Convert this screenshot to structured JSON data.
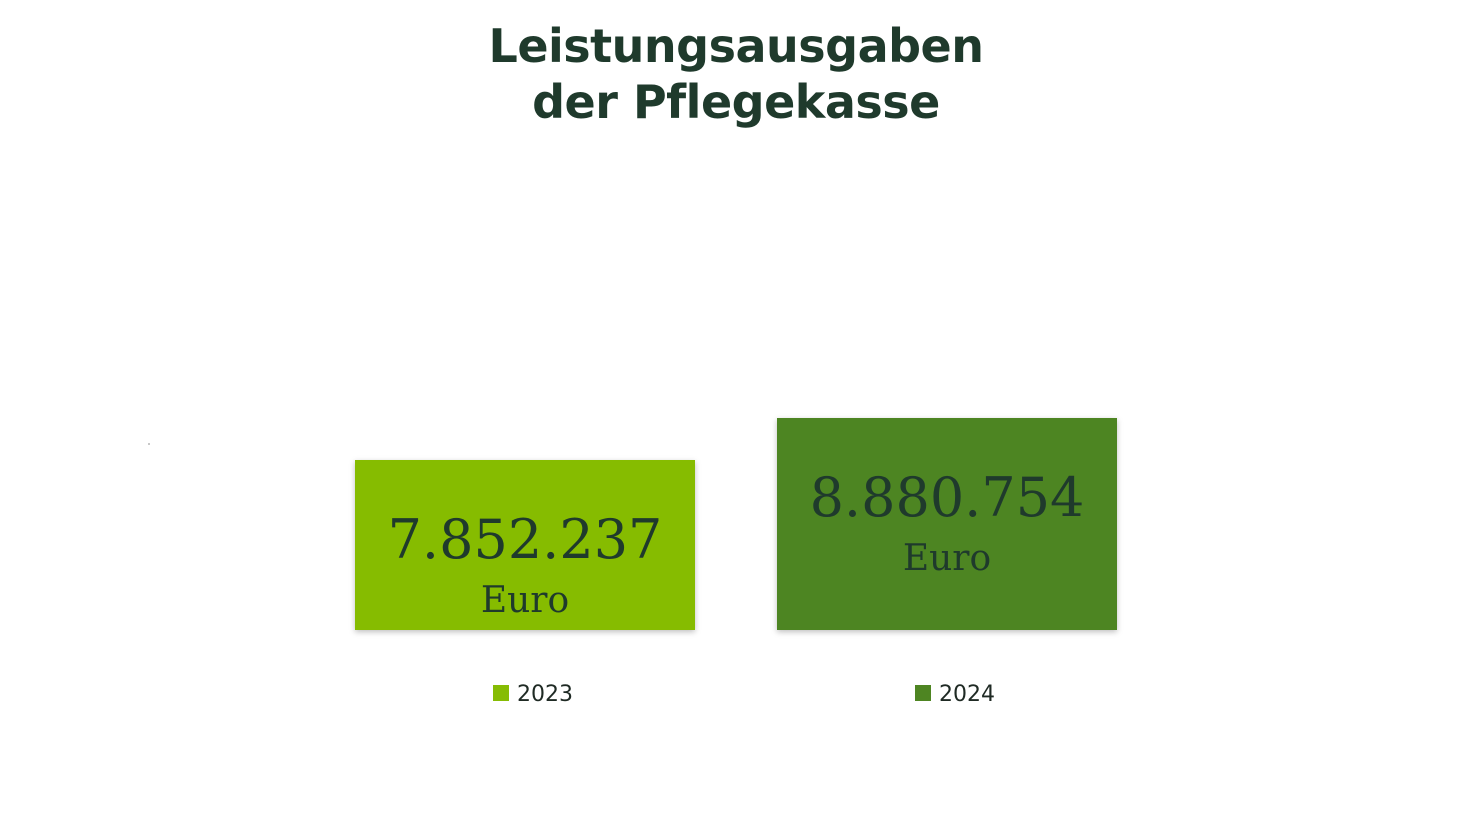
{
  "chart_data": {
    "type": "bar",
    "title_lines": [
      "Leistungsausgaben",
      "der Pflegekasse"
    ],
    "categories": [
      "2023",
      "2024"
    ],
    "values": [
      7852237,
      8880754
    ],
    "value_labels": [
      "7.852.237",
      "8.880.754"
    ],
    "unit": "Euro",
    "colors": [
      "#86bc04",
      "#4e8522"
    ],
    "legend": {
      "position": "bottom",
      "entries": [
        "2023",
        "2024"
      ]
    },
    "grid": false,
    "axes_visible": false
  }
}
